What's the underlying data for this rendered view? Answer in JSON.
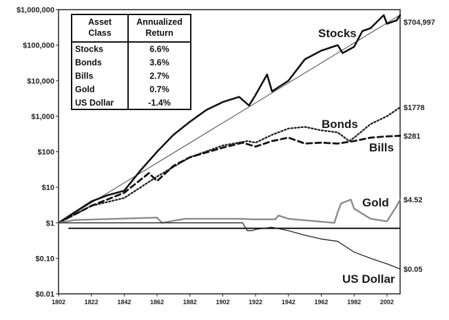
{
  "chart_data": {
    "type": "line",
    "y_scale": "log",
    "ylim": [
      0.01,
      1000000
    ],
    "xlim": [
      1802,
      2010
    ],
    "y_ticks": [
      {
        "value": 1000000,
        "label": "$1,000,000"
      },
      {
        "value": 100000,
        "label": "$100,000"
      },
      {
        "value": 10000,
        "label": "$10,000"
      },
      {
        "value": 1000,
        "label": "$1,000"
      },
      {
        "value": 100,
        "label": "$100"
      },
      {
        "value": 10,
        "label": "$10"
      },
      {
        "value": 1,
        "label": "$1"
      },
      {
        "value": 0.1,
        "label": "$0.10"
      },
      {
        "value": 0.01,
        "label": "$0.01"
      }
    ],
    "x_ticks": [
      "1802",
      "1822",
      "1842",
      "1862",
      "1882",
      "1902",
      "1922",
      "1942",
      "1962",
      "1982",
      "2002"
    ],
    "grid": false,
    "table": {
      "headers": [
        "Asset Class",
        "Annualized Return"
      ],
      "rows": [
        [
          "Stocks",
          "6.6%"
        ],
        [
          "Bonds",
          "3.6%"
        ],
        [
          "Bills",
          "2.7%"
        ],
        [
          "Gold",
          "0.7%"
        ],
        [
          "US Dollar",
          "-1.4%"
        ]
      ]
    },
    "series": [
      {
        "name": "Stocks",
        "end_label": "$704,997",
        "color": "#111111",
        "style": "solid-thick",
        "points": [
          [
            1802,
            1
          ],
          [
            1812,
            2
          ],
          [
            1822,
            4
          ],
          [
            1832,
            6
          ],
          [
            1842,
            8
          ],
          [
            1852,
            30
          ],
          [
            1862,
            100
          ],
          [
            1872,
            300
          ],
          [
            1882,
            700
          ],
          [
            1892,
            1500
          ],
          [
            1902,
            2500
          ],
          [
            1912,
            3500
          ],
          [
            1918,
            2000
          ],
          [
            1922,
            4000
          ],
          [
            1929,
            15000
          ],
          [
            1932,
            5000
          ],
          [
            1942,
            10000
          ],
          [
            1952,
            40000
          ],
          [
            1962,
            70000
          ],
          [
            1972,
            100000
          ],
          [
            1975,
            60000
          ],
          [
            1982,
            90000
          ],
          [
            1987,
            250000
          ],
          [
            1992,
            300000
          ],
          [
            2000,
            700000
          ],
          [
            2002,
            400000
          ],
          [
            2008,
            500000
          ],
          [
            2010,
            704997
          ]
        ]
      },
      {
        "name": "Bonds",
        "end_label": "$1778",
        "color": "#222222",
        "style": "dotted",
        "points": [
          [
            1802,
            1
          ],
          [
            1822,
            3
          ],
          [
            1842,
            5
          ],
          [
            1862,
            20
          ],
          [
            1882,
            70
          ],
          [
            1902,
            150
          ],
          [
            1917,
            200
          ],
          [
            1922,
            180
          ],
          [
            1932,
            300
          ],
          [
            1942,
            450
          ],
          [
            1952,
            500
          ],
          [
            1962,
            400
          ],
          [
            1972,
            350
          ],
          [
            1979,
            200
          ],
          [
            1982,
            250
          ],
          [
            1992,
            600
          ],
          [
            2002,
            1000
          ],
          [
            2010,
            1778
          ]
        ]
      },
      {
        "name": "Bills",
        "end_label": "$281",
        "color": "#111111",
        "style": "dashed",
        "points": [
          [
            1802,
            1
          ],
          [
            1822,
            3
          ],
          [
            1842,
            7
          ],
          [
            1857,
            25
          ],
          [
            1862,
            15
          ],
          [
            1872,
            40
          ],
          [
            1882,
            70
          ],
          [
            1902,
            130
          ],
          [
            1914,
            180
          ],
          [
            1922,
            140
          ],
          [
            1932,
            200
          ],
          [
            1942,
            250
          ],
          [
            1952,
            170
          ],
          [
            1962,
            180
          ],
          [
            1972,
            170
          ],
          [
            1982,
            200
          ],
          [
            1992,
            250
          ],
          [
            2002,
            270
          ],
          [
            2010,
            281
          ]
        ]
      },
      {
        "name": "Gold",
        "end_label": "$4.52",
        "color": "#8a8a8a",
        "style": "solid-gray",
        "points": [
          [
            1802,
            1
          ],
          [
            1812,
            1.2
          ],
          [
            1862,
            1.4
          ],
          [
            1865,
            1.0
          ],
          [
            1879,
            1.3
          ],
          [
            1912,
            1.3
          ],
          [
            1920,
            1.25
          ],
          [
            1934,
            1.25
          ],
          [
            1936,
            1.6
          ],
          [
            1942,
            1.3
          ],
          [
            1970,
            1.0
          ],
          [
            1972,
            2.0
          ],
          [
            1974,
            3.5
          ],
          [
            1980,
            4.5
          ],
          [
            1982,
            2.5
          ],
          [
            1992,
            1.3
          ],
          [
            2002,
            1.1
          ],
          [
            2008,
            3.0
          ],
          [
            2010,
            4.52
          ]
        ]
      },
      {
        "name": "US Dollar",
        "end_label": "$0.05",
        "color": "#222222",
        "style": "solid-thin",
        "points": [
          [
            1802,
            1
          ],
          [
            1862,
            1
          ],
          [
            1872,
            1
          ],
          [
            1902,
            1
          ],
          [
            1914,
            1
          ],
          [
            1917,
            0.6
          ],
          [
            1920,
            0.6
          ],
          [
            1922,
            0.65
          ],
          [
            1932,
            0.75
          ],
          [
            1942,
            0.6
          ],
          [
            1952,
            0.45
          ],
          [
            1962,
            0.35
          ],
          [
            1972,
            0.3
          ],
          [
            1982,
            0.15
          ],
          [
            1992,
            0.1
          ],
          [
            2002,
            0.07
          ],
          [
            2010,
            0.05
          ]
        ]
      }
    ],
    "reference_lines": [
      {
        "kind": "trend",
        "from": [
          1802,
          1
        ],
        "to": [
          2010,
          704997
        ],
        "color": "#444444"
      },
      {
        "kind": "horizontal",
        "value": 0.7,
        "from_x": 1808,
        "to_x": 2010,
        "color": "#111111"
      }
    ]
  }
}
